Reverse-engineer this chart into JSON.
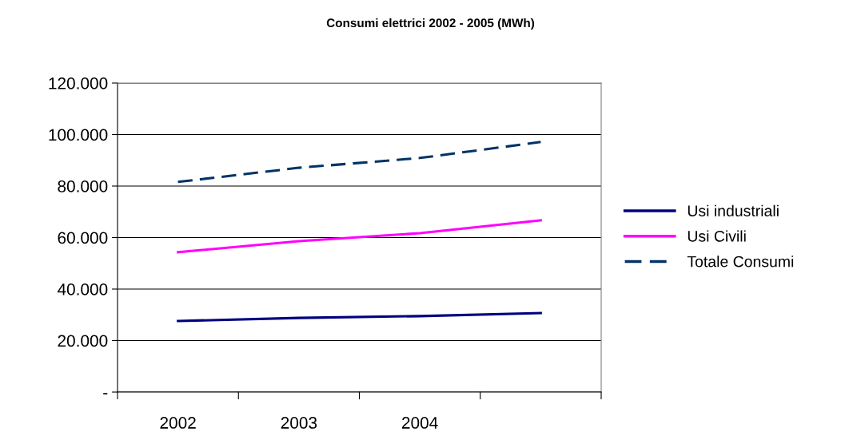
{
  "chart_data": {
    "type": "line",
    "title": "Consumi elettrici 2002 - 2005 (MWh)",
    "categories": [
      "2002",
      "2003",
      "2004",
      null
    ],
    "series": [
      {
        "name": "Usi industriali",
        "color": "#000080",
        "values": [
          27600,
          28800,
          29500,
          30700
        ],
        "line_style": "solid"
      },
      {
        "name": "Usi Civili",
        "color": "#ff00ff",
        "values": [
          54300,
          58600,
          61700,
          66700
        ],
        "line_style": "solid"
      },
      {
        "name": "Totale Consumi",
        "color": "#003366",
        "values": [
          81600,
          87100,
          90900,
          97100
        ],
        "line_style": "dashed"
      }
    ],
    "ylim": [
      0,
      120000
    ],
    "yticks": [
      {
        "value": 0,
        "label": "-"
      },
      {
        "value": 20000,
        "label": "20.000"
      },
      {
        "value": 40000,
        "label": "40.000"
      },
      {
        "value": 60000,
        "label": "60.000"
      },
      {
        "value": 80000,
        "label": "80.000"
      },
      {
        "value": 100000,
        "label": "100.000"
      },
      {
        "value": 120000,
        "label": "120.000"
      }
    ],
    "grid": "y",
    "legend": "right",
    "marker": "none"
  }
}
